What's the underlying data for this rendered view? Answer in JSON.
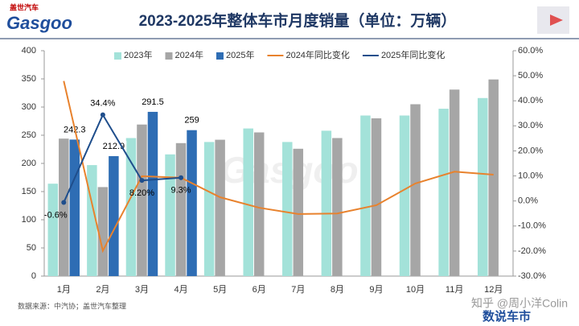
{
  "header": {
    "logo_cn": "盖世汽车",
    "logo": "Gasgoo"
  },
  "chart_data": {
    "type": "bar",
    "title": "2023-2025年整体车市月度销量（单位：万辆）",
    "categories": [
      "1月",
      "2月",
      "3月",
      "4月",
      "5月",
      "6月",
      "7月",
      "8月",
      "9月",
      "10月",
      "11月",
      "12月"
    ],
    "ylim": [
      0,
      400
    ],
    "yticks": [
      0,
      50,
      100,
      150,
      200,
      250,
      300,
      350,
      400
    ],
    "y2lim": [
      -30,
      60
    ],
    "y2ticks": [
      {
        "value": -30,
        "label": "-30.0%"
      },
      {
        "value": -20,
        "label": "-20.0%"
      },
      {
        "value": -10,
        "label": "-10.0%"
      },
      {
        "value": 0,
        "label": "0.0%"
      },
      {
        "value": 10,
        "label": "10.0%"
      },
      {
        "value": 20,
        "label": "20.0%"
      },
      {
        "value": 30,
        "label": "30.0%"
      },
      {
        "value": 40,
        "label": "40.0%"
      },
      {
        "value": 50,
        "label": "50.0%"
      },
      {
        "value": 60,
        "label": "60.0%"
      }
    ],
    "grid": false,
    "legend": "top",
    "series": [
      {
        "name": "2023年",
        "type": "bar",
        "color": "#a3e2d9",
        "values": [
          164,
          197,
          245,
          216,
          238,
          262,
          238,
          258,
          285,
          285,
          297,
          316
        ]
      },
      {
        "name": "2024年",
        "type": "bar",
        "color": "#a6a6a6",
        "values": [
          244,
          158,
          269,
          236,
          242,
          255,
          226,
          245,
          280,
          305,
          331,
          349
        ]
      },
      {
        "name": "2025年",
        "type": "bar",
        "color": "#2e6db4",
        "values": [
          242.3,
          212.9,
          291.5,
          259,
          null,
          null,
          null,
          null,
          null,
          null,
          null,
          null
        ],
        "show_labels": true
      },
      {
        "name": "2024年同比变化",
        "type": "line",
        "axis": "y2",
        "color": "#e8822d",
        "values": [
          47.9,
          -19.9,
          9.9,
          9.3,
          1.5,
          -2.7,
          -5.2,
          -5.0,
          -1.7,
          7.0,
          11.7,
          10.5
        ]
      },
      {
        "name": "2025年同比变化",
        "type": "line",
        "axis": "y2",
        "color": "#1f4e8c",
        "markers": true,
        "values": [
          -0.6,
          34.4,
          8.2,
          9.3,
          null,
          null,
          null,
          null,
          null,
          null,
          null,
          null
        ],
        "value_labels": [
          "-0.6%",
          "34.4%",
          "8.20%",
          "9.3%",
          null,
          null,
          null,
          null,
          null,
          null,
          null,
          null
        ]
      }
    ]
  },
  "footer": {
    "source": "数据来源：中汽协；盖世汽车整理",
    "watermark": "知乎 @周小洋Colin",
    "brand": "数说车市"
  }
}
